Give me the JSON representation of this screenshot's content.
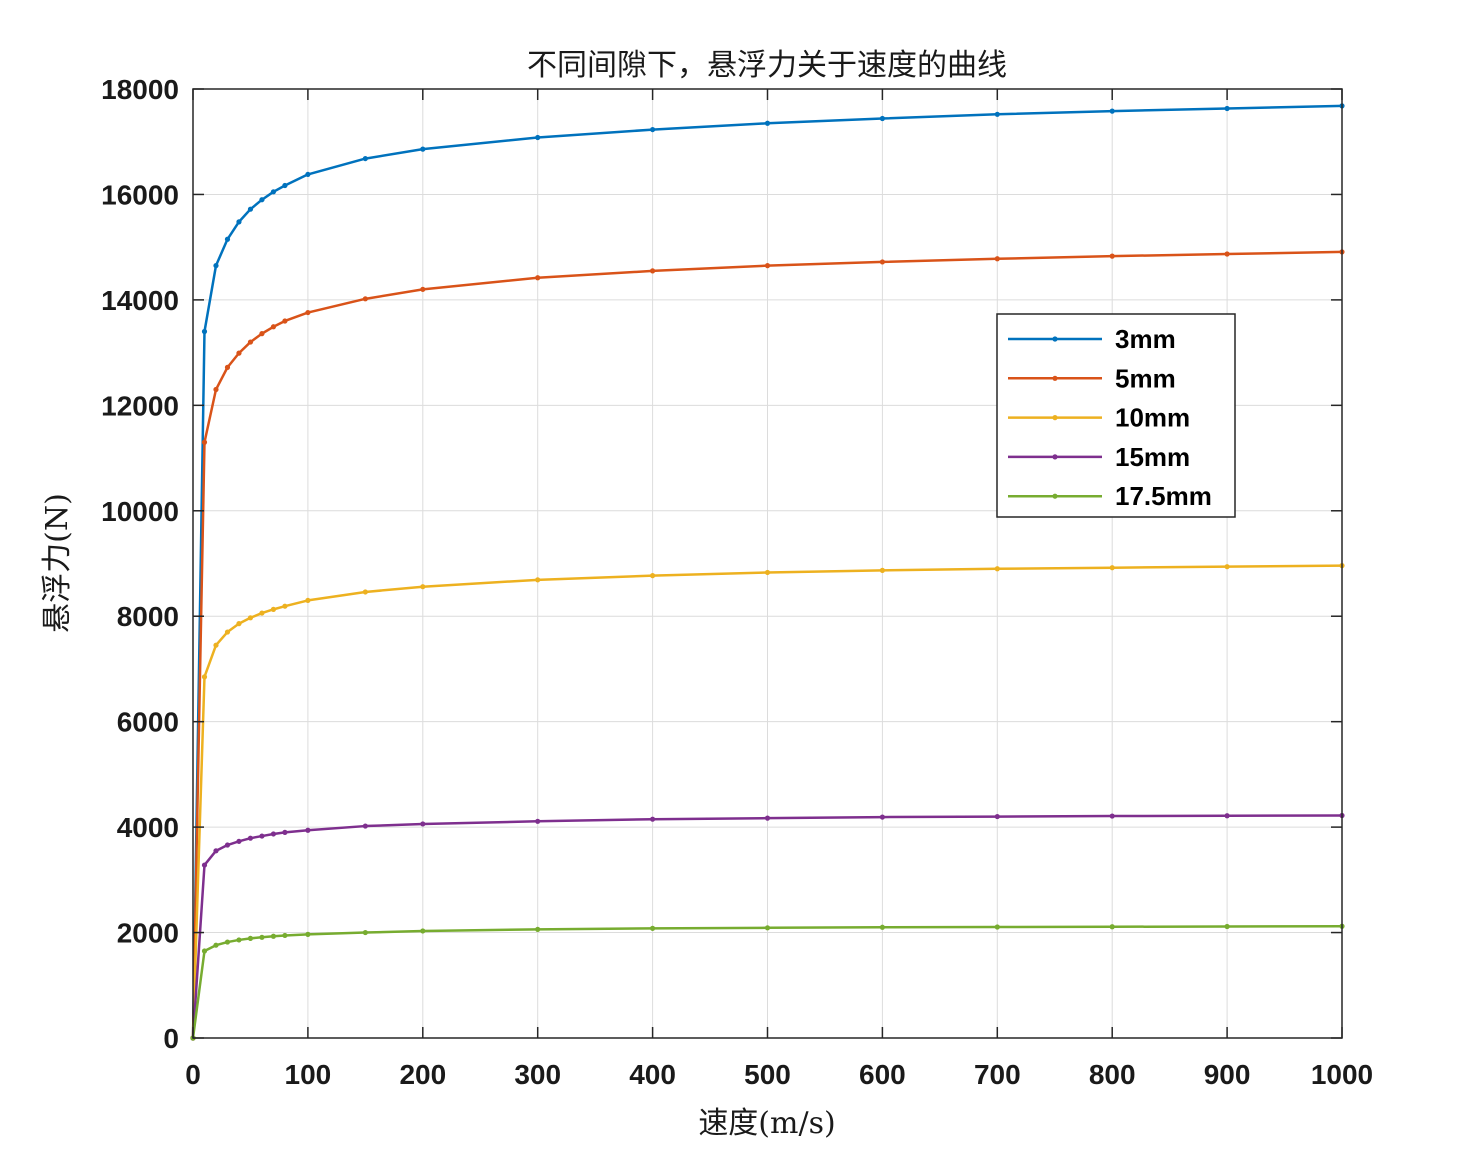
{
  "chart_data": {
    "type": "line",
    "title": "不同间隙下，悬浮力关于速度的曲线",
    "xlabel": "速度(m/s)",
    "ylabel": "悬浮力(N)",
    "xlim": [
      0,
      1000
    ],
    "ylim": [
      0,
      18000
    ],
    "x_ticks": [
      0,
      100,
      200,
      300,
      400,
      500,
      600,
      700,
      800,
      900,
      1000
    ],
    "y_ticks": [
      0,
      2000,
      4000,
      6000,
      8000,
      10000,
      12000,
      14000,
      16000,
      18000
    ],
    "grid": true,
    "legend_position": "upper-right-inside",
    "x": [
      0,
      10,
      20,
      30,
      40,
      50,
      60,
      70,
      80,
      100,
      150,
      200,
      300,
      400,
      500,
      600,
      700,
      800,
      900,
      1000
    ],
    "series": [
      {
        "name": "3mm",
        "color": "#0072BD",
        "values": [
          0,
          13400,
          14650,
          15150,
          15480,
          15720,
          15900,
          16050,
          16170,
          16380,
          16680,
          16860,
          17080,
          17230,
          17350,
          17440,
          17520,
          17580,
          17630,
          17680
        ]
      },
      {
        "name": "5mm",
        "color": "#D95319",
        "values": [
          0,
          11300,
          12300,
          12720,
          12990,
          13200,
          13360,
          13490,
          13600,
          13760,
          14020,
          14200,
          14420,
          14550,
          14650,
          14720,
          14780,
          14830,
          14870,
          14910
        ]
      },
      {
        "name": "10mm",
        "color": "#EDB120",
        "values": [
          0,
          6850,
          7450,
          7700,
          7860,
          7970,
          8060,
          8130,
          8190,
          8300,
          8460,
          8560,
          8690,
          8770,
          8830,
          8870,
          8900,
          8920,
          8940,
          8960
        ]
      },
      {
        "name": "15mm",
        "color": "#7E2F8E",
        "values": [
          0,
          3280,
          3550,
          3660,
          3730,
          3790,
          3830,
          3870,
          3900,
          3940,
          4020,
          4060,
          4110,
          4150,
          4170,
          4190,
          4200,
          4210,
          4215,
          4220
        ]
      },
      {
        "name": "17.5mm",
        "color": "#77AC30",
        "values": [
          0,
          1650,
          1760,
          1820,
          1860,
          1890,
          1910,
          1930,
          1945,
          1965,
          2000,
          2030,
          2060,
          2080,
          2090,
          2100,
          2105,
          2110,
          2115,
          2120
        ]
      }
    ]
  }
}
